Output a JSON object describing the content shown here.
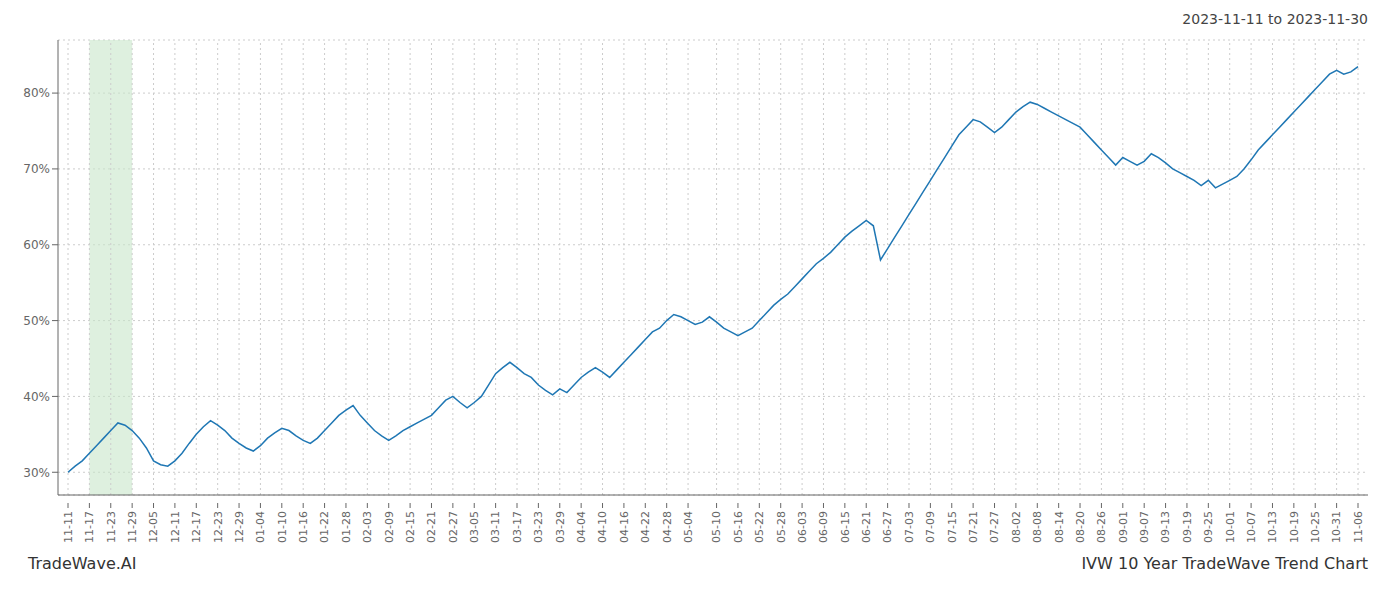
{
  "chart_data": {
    "type": "line",
    "title": "2023-11-11 to 2023-11-30",
    "annotations": [
      "TradeWave.AI",
      "IVW 10 Year TradeWave Trend Chart"
    ],
    "color": "#1f77b4",
    "grid": true,
    "highlight": {
      "from": "11-17",
      "to": "11-29",
      "color": "#c8e6c9"
    },
    "ylim": [
      27,
      87
    ],
    "yticks": [
      {
        "value": 30,
        "label": "30%"
      },
      {
        "value": 40,
        "label": "40%"
      },
      {
        "value": 50,
        "label": "50%"
      },
      {
        "value": 60,
        "label": "60%"
      },
      {
        "value": 70,
        "label": "70%"
      },
      {
        "value": 80,
        "label": "80%"
      }
    ],
    "categories": [
      "11-11",
      null,
      null,
      "11-17",
      null,
      null,
      "11-23",
      null,
      null,
      "11-29",
      null,
      null,
      "12-05",
      null,
      null,
      "12-11",
      null,
      null,
      "12-17",
      null,
      null,
      "12-23",
      null,
      null,
      "12-29",
      null,
      null,
      "01-04",
      null,
      null,
      "01-10",
      null,
      null,
      "01-16",
      null,
      null,
      "01-22",
      null,
      null,
      "01-28",
      null,
      null,
      "02-03",
      null,
      null,
      "02-09",
      null,
      null,
      "02-15",
      null,
      null,
      "02-21",
      null,
      null,
      "02-27",
      null,
      null,
      "03-05",
      null,
      null,
      "03-11",
      null,
      null,
      "03-17",
      null,
      null,
      "03-23",
      null,
      null,
      "03-29",
      null,
      null,
      "04-04",
      null,
      null,
      "04-10",
      null,
      null,
      "04-16",
      null,
      null,
      "04-22",
      null,
      null,
      "04-28",
      null,
      null,
      "05-04",
      null,
      null,
      null,
      "05-10",
      null,
      null,
      "05-16",
      null,
      null,
      "05-22",
      null,
      null,
      "05-28",
      null,
      null,
      "06-03",
      null,
      null,
      "06-09",
      null,
      null,
      "06-15",
      null,
      null,
      "06-21",
      null,
      null,
      "06-27",
      null,
      null,
      "07-03",
      null,
      null,
      "07-09",
      null,
      null,
      "07-15",
      null,
      null,
      "07-21",
      null,
      null,
      "07-27",
      null,
      null,
      "08-02",
      null,
      null,
      "08-08",
      null,
      null,
      "08-14",
      null,
      null,
      "08-20",
      null,
      null,
      "08-26",
      null,
      null,
      "09-01",
      null,
      null,
      "09-07",
      null,
      null,
      "09-13",
      null,
      null,
      "09-19",
      null,
      null,
      "09-25",
      null,
      null,
      "10-01",
      null,
      null,
      "10-07",
      null,
      null,
      "10-13",
      null,
      null,
      "10-19",
      null,
      null,
      "10-25",
      null,
      null,
      "10-31",
      null,
      null,
      "11-06"
    ],
    "values": [
      30.0,
      30.8,
      31.5,
      32.5,
      33.5,
      34.5,
      35.5,
      36.5,
      36.2,
      35.5,
      34.5,
      33.2,
      31.5,
      31.0,
      30.8,
      31.5,
      32.5,
      33.8,
      35.0,
      36.0,
      36.8,
      36.2,
      35.5,
      34.5,
      33.8,
      33.2,
      32.8,
      33.5,
      34.5,
      35.2,
      35.8,
      35.5,
      34.8,
      34.2,
      33.8,
      34.5,
      35.5,
      36.5,
      37.5,
      38.2,
      38.8,
      37.5,
      36.5,
      35.5,
      34.8,
      34.2,
      34.8,
      35.5,
      36.0,
      36.5,
      37.0,
      37.5,
      38.5,
      39.5,
      40.0,
      39.2,
      38.5,
      39.2,
      40.0,
      41.5,
      43.0,
      43.8,
      44.5,
      43.8,
      43.0,
      42.5,
      41.5,
      40.8,
      40.2,
      41.0,
      40.5,
      41.5,
      42.5,
      43.2,
      43.8,
      43.2,
      42.5,
      43.5,
      44.5,
      45.5,
      46.5,
      47.5,
      48.5,
      49.0,
      50.0,
      50.8,
      50.5,
      50.0,
      49.5,
      49.8,
      50.5,
      49.8,
      49.0,
      48.5,
      48.0,
      48.5,
      49.0,
      50.0,
      51.0,
      52.0,
      52.8,
      53.5,
      54.5,
      55.5,
      56.5,
      57.5,
      58.2,
      59.0,
      60.0,
      61.0,
      61.8,
      62.5,
      63.2,
      62.5,
      58.0,
      59.5,
      61.0,
      62.5,
      64.0,
      65.5,
      67.0,
      68.5,
      70.0,
      71.5,
      73.0,
      74.5,
      75.5,
      76.5,
      76.2,
      75.5,
      74.8,
      75.5,
      76.5,
      77.5,
      78.2,
      78.8,
      78.5,
      78.0,
      77.5,
      77.0,
      76.5,
      76.0,
      75.5,
      74.5,
      73.5,
      72.5,
      71.5,
      70.5,
      71.5,
      71.0,
      70.5,
      71.0,
      72.0,
      71.5,
      70.8,
      70.0,
      69.5,
      69.0,
      68.5,
      67.8,
      68.5,
      67.5,
      68.0,
      68.5,
      69.0,
      70.0,
      71.2,
      72.5,
      73.5,
      74.5,
      75.5,
      76.5,
      77.5,
      78.5,
      79.5,
      80.5,
      81.5,
      82.5,
      83.0,
      82.5,
      82.8,
      83.5
    ]
  }
}
